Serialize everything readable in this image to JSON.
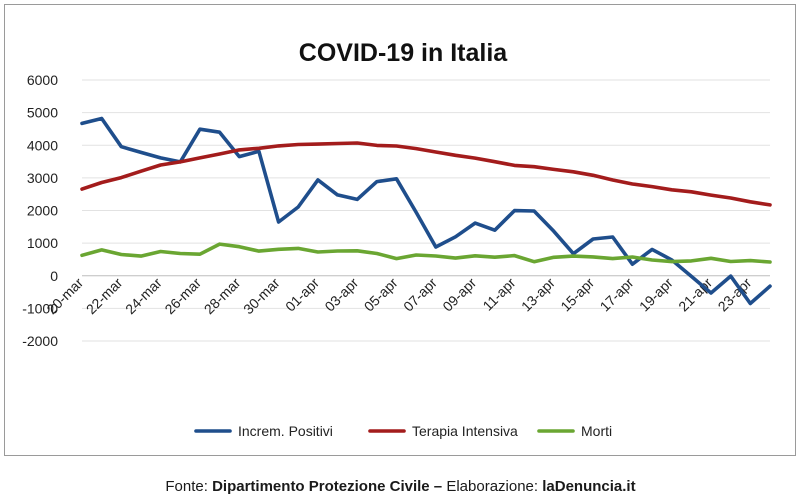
{
  "chart_data": {
    "type": "line",
    "title": "COVID-19 in Italia",
    "xlabel": "",
    "ylabel": "",
    "ylim": [
      -2000,
      6000
    ],
    "yticks": [
      -2000,
      -1000,
      0,
      1000,
      2000,
      3000,
      4000,
      5000,
      6000
    ],
    "x": [
      "20-mar",
      "21-mar",
      "22-mar",
      "23-mar",
      "24-mar",
      "25-mar",
      "26-mar",
      "27-mar",
      "28-mar",
      "29-mar",
      "30-mar",
      "31-mar",
      "01-apr",
      "02-apr",
      "03-apr",
      "04-apr",
      "05-apr",
      "06-apr",
      "07-apr",
      "08-apr",
      "09-apr",
      "10-apr",
      "11-apr",
      "12-apr",
      "13-apr",
      "14-apr",
      "15-apr",
      "16-apr",
      "17-apr",
      "18-apr",
      "19-apr",
      "20-apr",
      "21-apr",
      "22-apr",
      "23-apr",
      "24-apr"
    ],
    "xtick_labels": [
      "20-mar",
      "22-mar",
      "24-mar",
      "26-mar",
      "28-mar",
      "30-mar",
      "01-apr",
      "03-apr",
      "05-apr",
      "07-apr",
      "09-apr",
      "11-apr",
      "13-apr",
      "15-apr",
      "17-apr",
      "19-apr",
      "21-apr",
      "23-apr"
    ],
    "grid": "horizontal",
    "legend_position": "bottom",
    "series": [
      {
        "name": "Increm. Positivi",
        "color": "#1f4e8c",
        "values": [
          4670,
          4820,
          3957,
          3780,
          3612,
          3491,
          4492,
          4401,
          3651,
          3815,
          1648,
          2107,
          2937,
          2477,
          2339,
          2886,
          2972,
          1941,
          880,
          1195,
          1615,
          1396,
          1996,
          1984,
          1363,
          675,
          1127,
          1189,
          355,
          809,
          486,
          -20,
          -528,
          -10,
          -851,
          -321
        ]
      },
      {
        "name": "Terapia Intensiva",
        "color": "#a31c1c",
        "values": [
          2655,
          2857,
          3009,
          3204,
          3396,
          3489,
          3612,
          3732,
          3856,
          3906,
          3981,
          4023,
          4035,
          4053,
          4068,
          3994,
          3977,
          3898,
          3792,
          3693,
          3605,
          3497,
          3381,
          3343,
          3260,
          3186,
          3079,
          2936,
          2812,
          2733,
          2635,
          2573,
          2471,
          2384,
          2267,
          2173
        ]
      },
      {
        "name": "Morti",
        "color": "#6aa632",
        "values": [
          627,
          793,
          651,
          601,
          743,
          683,
          662,
          969,
          889,
          756,
          812,
          837,
          727,
          760,
          766,
          681,
          525,
          636,
          604,
          542,
          610,
          570,
          619,
          431,
          566,
          602,
          578,
          525,
          575,
          482,
          433,
          454,
          534,
          437,
          464,
          420
        ]
      }
    ]
  },
  "footer": {
    "prefix": "Fonte: ",
    "source": "Dipartimento Protezione Civile",
    "separator": " – ",
    "mid": "Elaborazione: ",
    "site": "laDenuncia.it"
  }
}
